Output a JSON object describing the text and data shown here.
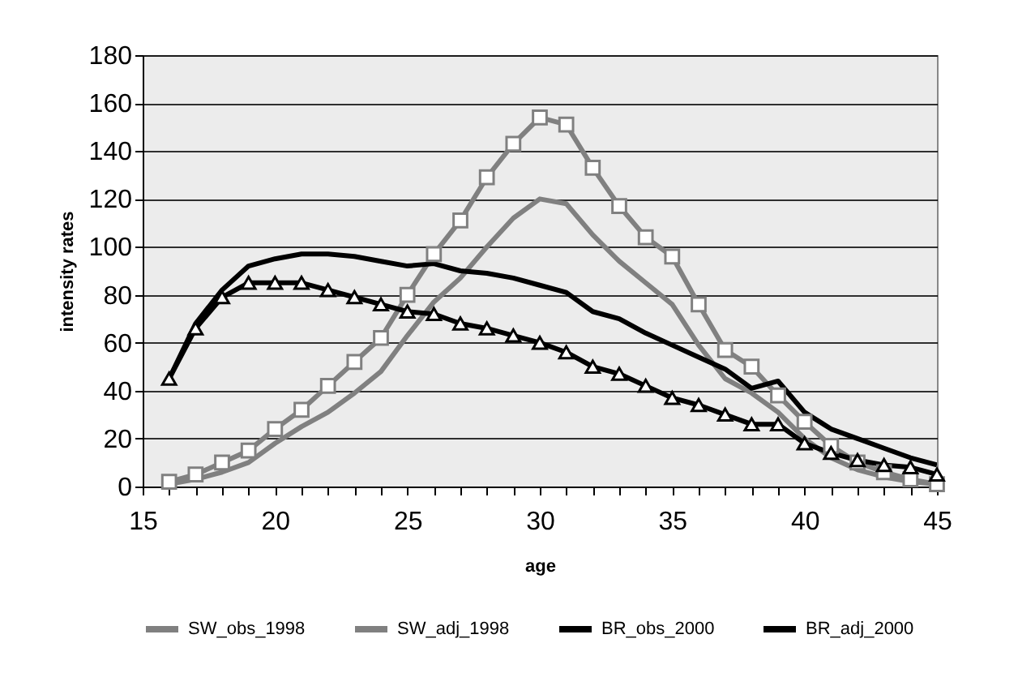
{
  "chart_data": {
    "type": "line",
    "xlabel": "age",
    "ylabel": "intensity rates",
    "x": [
      16,
      17,
      18,
      19,
      20,
      21,
      22,
      23,
      24,
      25,
      26,
      27,
      28,
      29,
      30,
      31,
      32,
      33,
      34,
      35,
      36,
      37,
      38,
      39,
      40,
      41,
      42,
      43,
      44,
      45
    ],
    "xlim": [
      15,
      45
    ],
    "xticks": [
      15,
      {
        "value": 16,
        "label": null
      },
      {
        "value": 17,
        "label": null
      },
      {
        "value": 18,
        "label": null
      },
      {
        "value": 19,
        "label": null
      },
      20,
      {
        "value": 21,
        "label": null
      },
      {
        "value": 22,
        "label": null
      },
      {
        "value": 23,
        "label": null
      },
      {
        "value": 24,
        "label": null
      },
      25,
      {
        "value": 26,
        "label": null
      },
      {
        "value": 27,
        "label": null
      },
      {
        "value": 28,
        "label": null
      },
      {
        "value": 29,
        "label": null
      },
      30,
      {
        "value": 31,
        "label": null
      },
      {
        "value": 32,
        "label": null
      },
      {
        "value": 33,
        "label": null
      },
      {
        "value": 34,
        "label": null
      },
      35,
      {
        "value": 36,
        "label": null
      },
      {
        "value": 37,
        "label": null
      },
      {
        "value": 38,
        "label": null
      },
      {
        "value": 39,
        "label": null
      },
      40,
      {
        "value": 41,
        "label": null
      },
      {
        "value": 42,
        "label": null
      },
      {
        "value": 43,
        "label": null
      },
      {
        "value": 44,
        "label": null
      },
      45
    ],
    "ylim": [
      0,
      180
    ],
    "yticks": [
      0,
      20,
      40,
      60,
      80,
      100,
      120,
      140,
      160,
      180
    ],
    "grid": "y",
    "legend": "bottom",
    "line_style": "solid",
    "series": [
      {
        "name": "SW_obs_1998",
        "color": "#808080",
        "marker": "none",
        "values": [
          1,
          3,
          6,
          10,
          18,
          25,
          31,
          39,
          48,
          63,
          77,
          87,
          100,
          112,
          120,
          118,
          105,
          94,
          85,
          76,
          59,
          45,
          39,
          31,
          20,
          12,
          7,
          4,
          2,
          1
        ]
      },
      {
        "name": "SW_adj_1998",
        "color": "#808080",
        "marker": "square",
        "values": [
          2,
          5,
          10,
          15,
          24,
          32,
          42,
          52,
          62,
          80,
          97,
          111,
          129,
          143,
          154,
          151,
          133,
          117,
          104,
          96,
          76,
          57,
          50,
          38,
          27,
          17,
          10,
          6,
          3,
          1
        ]
      },
      {
        "name": "BR_obs_2000",
        "color": "#000000",
        "marker": "none",
        "values": [
          45,
          68,
          82,
          92,
          95,
          97,
          97,
          96,
          94,
          92,
          93,
          90,
          89,
          87,
          84,
          81,
          73,
          70,
          64,
          59,
          54,
          49,
          41,
          44,
          31,
          24,
          20,
          16,
          12,
          9
        ]
      },
      {
        "name": "BR_adj_2000",
        "color": "#000000",
        "marker": "triangle",
        "values": [
          45,
          66,
          79,
          85,
          85,
          85,
          82,
          79,
          76,
          73,
          72,
          68,
          66,
          63,
          60,
          56,
          50,
          47,
          42,
          37,
          34,
          30,
          26,
          26,
          18,
          14,
          11,
          9,
          8,
          5
        ]
      }
    ]
  }
}
